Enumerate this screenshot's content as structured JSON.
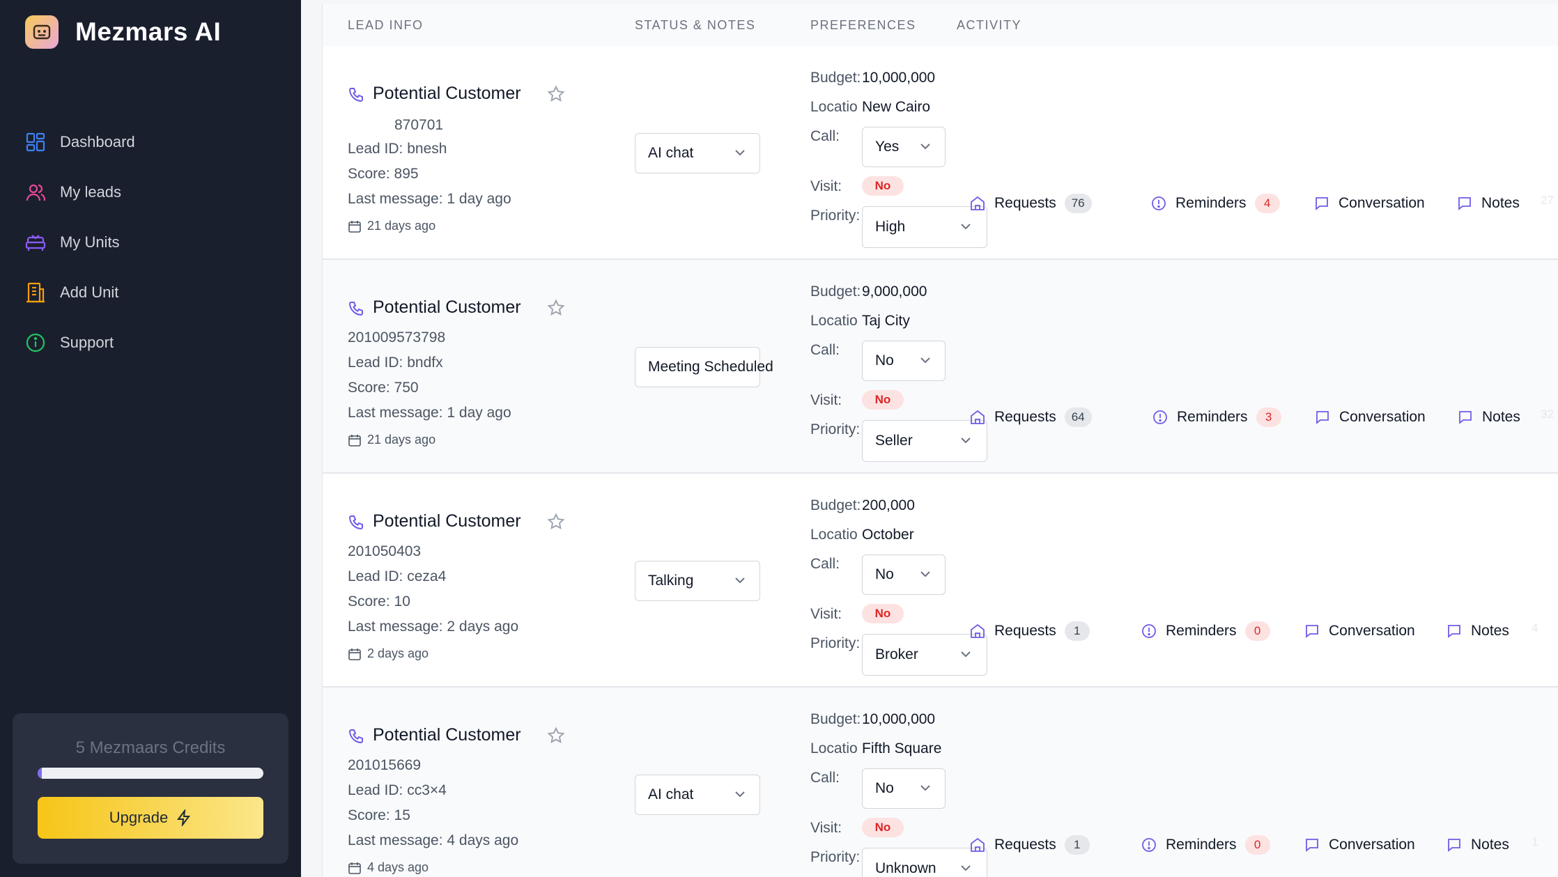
{
  "brand": {
    "name": "Mezmars AI"
  },
  "nav": [
    {
      "label": "Dashboard",
      "icon": "grid-icon",
      "color": "#3b82f6"
    },
    {
      "label": "My leads",
      "icon": "users-icon",
      "color": "#ec4899"
    },
    {
      "label": "My Units",
      "icon": "sofa-icon",
      "color": "#8b5cf6"
    },
    {
      "label": "Add Unit",
      "icon": "building-icon",
      "color": "#f59e0b"
    },
    {
      "label": "Support",
      "icon": "info-icon",
      "color": "#22c55e"
    }
  ],
  "credits": {
    "text": "5 Mezmaars Credits",
    "fill_percent": 2,
    "upgrade_label": "Upgrade"
  },
  "table": {
    "headers": {
      "lead_info": "LEAD INFO",
      "status_notes": "STATUS & NOTES",
      "preferences": "PREFERENCES",
      "activity": "ACTIVITY"
    }
  },
  "labels": {
    "budget": "Budget:",
    "location": "Locatio",
    "call": "Call:",
    "visit": "Visit:",
    "priority": "Priority:",
    "requests": "Requests",
    "reminders": "Reminders",
    "conversation": "Conversation",
    "notes": "Notes"
  },
  "leads": [
    {
      "name": "Potential Customer",
      "phone": "870701",
      "lead_id": "Lead ID: bnesh",
      "score": "Score: 895",
      "last_message": "Last message: 1 day ago",
      "date": "21 days ago",
      "status": "AI chat",
      "budget": "10,000,000",
      "location": "New Cairo",
      "call": "Yes",
      "visit": "No",
      "priority": "High",
      "requests": "76",
      "reminders": "4",
      "faded": "27"
    },
    {
      "name": "Potential Customer",
      "phone": "201009573798",
      "lead_id": "Lead ID: bndfx",
      "score": "Score: 750",
      "last_message": "Last message: 1 day ago",
      "date": "21 days ago",
      "status": "Meeting Scheduled",
      "budget": "9,000,000",
      "location": "Taj City",
      "call": "No",
      "visit": "No",
      "priority": "Seller",
      "requests": "64",
      "reminders": "3",
      "faded": "32"
    },
    {
      "name": "Potential Customer",
      "phone": "201050403",
      "lead_id": "Lead ID: ceza4",
      "score": "Score: 10",
      "last_message": "Last message: 2 days ago",
      "date": "2 days ago",
      "status": "Talking",
      "budget": "200,000",
      "location": "October",
      "call": "No",
      "visit": "No",
      "priority": "Broker",
      "requests": "1",
      "reminders": "0",
      "faded": "4"
    },
    {
      "name": "Potential Customer",
      "phone": "201015669",
      "lead_id": "Lead ID: cc3×4",
      "score": "Score: 15",
      "last_message": "Last message: 4 days ago",
      "date": "4 days ago",
      "status": "AI chat",
      "budget": "10,000,000",
      "location": "Fifth Square",
      "call": "No",
      "visit": "No",
      "priority": "Unknown",
      "requests": "1",
      "reminders": "0",
      "faded": "1"
    }
  ]
}
